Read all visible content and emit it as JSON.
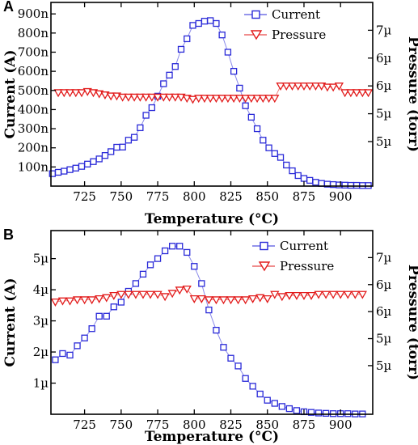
{
  "chart_data": [
    {
      "panel": "A",
      "type": "scatter",
      "xlabel": "Temperature (°C)",
      "ylabel_left": "Current (A)",
      "ylabel_right": "Pressure (torr)",
      "xlim": [
        702,
        922
      ],
      "x_ticks": [
        725,
        750,
        775,
        800,
        825,
        850,
        875,
        900
      ],
      "y_left_lim": [
        0,
        960
      ],
      "y_left_ticks": [
        {
          "v": 100,
          "label": "100n"
        },
        {
          "v": 200,
          "label": "200n"
        },
        {
          "v": 300,
          "label": "300n"
        },
        {
          "v": 400,
          "label": "400n"
        },
        {
          "v": 500,
          "label": "500n"
        },
        {
          "v": 600,
          "label": "600n"
        },
        {
          "v": 700,
          "label": "700n"
        },
        {
          "v": 800,
          "label": "800n"
        },
        {
          "v": 900,
          "label": "900n"
        }
      ],
      "y_right_lim": [
        4.2,
        7.5
      ],
      "y_right_ticks": [
        {
          "v": 5,
          "label": "5µ"
        },
        {
          "v": 5.5,
          "label": "5µ"
        },
        {
          "v": 6,
          "label": "6µ"
        },
        {
          "v": 6.5,
          "label": "6µ"
        },
        {
          "v": 7,
          "label": "7µ"
        }
      ],
      "series": [
        {
          "name": "Current",
          "axis": "left",
          "color": "#2a2ad8",
          "marker": "square",
          "x": [
            703,
            707,
            711,
            715,
            719,
            723,
            727,
            731,
            735,
            739,
            743,
            747,
            751,
            755,
            759,
            763,
            767,
            771,
            775,
            779,
            783,
            787,
            791,
            795,
            799,
            803,
            807,
            811,
            815,
            819,
            823,
            827,
            831,
            835,
            839,
            843,
            847,
            851,
            855,
            859,
            863,
            867,
            871,
            875,
            879,
            883,
            887,
            891,
            895,
            899,
            903,
            907,
            911,
            915,
            919
          ],
          "y": [
            65,
            72,
            78,
            86,
            94,
            103,
            115,
            128,
            142,
            160,
            180,
            203,
            204,
            240,
            255,
            305,
            370,
            410,
            470,
            535,
            580,
            625,
            715,
            770,
            840,
            850,
            862,
            865,
            850,
            790,
            700,
            600,
            512,
            420,
            360,
            300,
            240,
            200,
            170,
            150,
            110,
            80,
            55,
            40,
            30,
            20,
            14,
            10,
            8,
            6,
            5,
            4,
            4,
            3,
            3
          ]
        },
        {
          "name": "Pressure",
          "axis": "right",
          "color": "#e21b1b",
          "marker": "triangle-down",
          "x": [
            707,
            711,
            715,
            719,
            723,
            727,
            731,
            735,
            739,
            743,
            747,
            751,
            755,
            759,
            763,
            767,
            771,
            775,
            779,
            783,
            787,
            791,
            795,
            799,
            803,
            807,
            811,
            815,
            819,
            823,
            827,
            831,
            835,
            839,
            843,
            847,
            851,
            855,
            859,
            863,
            867,
            871,
            875,
            879,
            883,
            887,
            891,
            895,
            899,
            903,
            907,
            911,
            915,
            919
          ],
          "y": [
            5.88,
            5.88,
            5.88,
            5.88,
            5.88,
            5.9,
            5.88,
            5.86,
            5.84,
            5.82,
            5.82,
            5.8,
            5.8,
            5.8,
            5.8,
            5.8,
            5.8,
            5.8,
            5.8,
            5.8,
            5.8,
            5.8,
            5.78,
            5.76,
            5.78,
            5.78,
            5.78,
            5.78,
            5.78,
            5.78,
            5.78,
            5.78,
            5.78,
            5.78,
            5.78,
            5.78,
            5.78,
            5.78,
            6.0,
            6.0,
            6.0,
            6.0,
            6.0,
            6.0,
            6.0,
            6.0,
            5.98,
            5.98,
            6.0,
            5.88,
            5.88,
            5.88,
            5.88,
            5.88
          ]
        }
      ]
    },
    {
      "panel": "B",
      "type": "scatter",
      "xlabel": "Temperature (°C)",
      "ylabel_left": "Current (A)",
      "ylabel_right": "Pressure (torr)",
      "xlim": [
        702,
        922
      ],
      "x_ticks": [
        725,
        750,
        775,
        800,
        825,
        850,
        875,
        900
      ],
      "y_left_lim": [
        0,
        5.9
      ],
      "y_left_ticks": [
        {
          "v": 1,
          "label": "1µ"
        },
        {
          "v": 2,
          "label": "2µ"
        },
        {
          "v": 3,
          "label": "3µ"
        },
        {
          "v": 4,
          "label": "4µ"
        },
        {
          "v": 5,
          "label": "5µ"
        }
      ],
      "y_right_lim": [
        4.1,
        7.5
      ],
      "y_right_ticks": [
        {
          "v": 5,
          "label": "5µ"
        },
        {
          "v": 5.5,
          "label": "5µ"
        },
        {
          "v": 6,
          "label": "6µ"
        },
        {
          "v": 6.5,
          "label": "6µ"
        },
        {
          "v": 7,
          "label": "7µ"
        }
      ],
      "series": [
        {
          "name": "Current",
          "axis": "left",
          "color": "#2a2ad8",
          "marker": "square",
          "x": [
            705,
            710,
            715,
            720,
            725,
            730,
            735,
            740,
            745,
            750,
            755,
            760,
            765,
            770,
            775,
            780,
            785,
            790,
            795,
            800,
            805,
            810,
            815,
            820,
            825,
            830,
            835,
            840,
            845,
            850,
            855,
            860,
            865,
            870,
            875,
            880,
            885,
            890,
            895,
            900,
            905,
            910,
            915
          ],
          "y": [
            1.75,
            1.95,
            1.9,
            2.2,
            2.45,
            2.75,
            3.15,
            3.15,
            3.45,
            3.6,
            3.95,
            4.2,
            4.5,
            4.8,
            5.0,
            5.25,
            5.4,
            5.4,
            5.2,
            4.75,
            4.2,
            3.35,
            2.7,
            2.15,
            1.8,
            1.55,
            1.15,
            0.9,
            0.65,
            0.45,
            0.35,
            0.25,
            0.18,
            0.12,
            0.08,
            0.06,
            0.04,
            0.03,
            0.02,
            0.02,
            0.02,
            0.01,
            0.01
          ]
        },
        {
          "name": "Pressure",
          "axis": "right",
          "color": "#e21b1b",
          "marker": "triangle-down",
          "x": [
            705,
            710,
            715,
            720,
            725,
            730,
            735,
            740,
            745,
            750,
            755,
            760,
            765,
            770,
            775,
            780,
            785,
            790,
            795,
            800,
            805,
            810,
            815,
            820,
            825,
            830,
            835,
            840,
            845,
            850,
            855,
            860,
            865,
            870,
            875,
            880,
            885,
            890,
            895,
            900,
            905,
            910,
            915
          ],
          "y": [
            6.18,
            6.2,
            6.2,
            6.22,
            6.22,
            6.22,
            6.24,
            6.26,
            6.3,
            6.32,
            6.32,
            6.32,
            6.32,
            6.32,
            6.32,
            6.28,
            6.34,
            6.4,
            6.42,
            6.24,
            6.24,
            6.22,
            6.22,
            6.22,
            6.22,
            6.22,
            6.22,
            6.24,
            6.26,
            6.24,
            6.32,
            6.28,
            6.3,
            6.3,
            6.3,
            6.3,
            6.32,
            6.32,
            6.32,
            6.32,
            6.32,
            6.32,
            6.32
          ]
        }
      ]
    }
  ]
}
